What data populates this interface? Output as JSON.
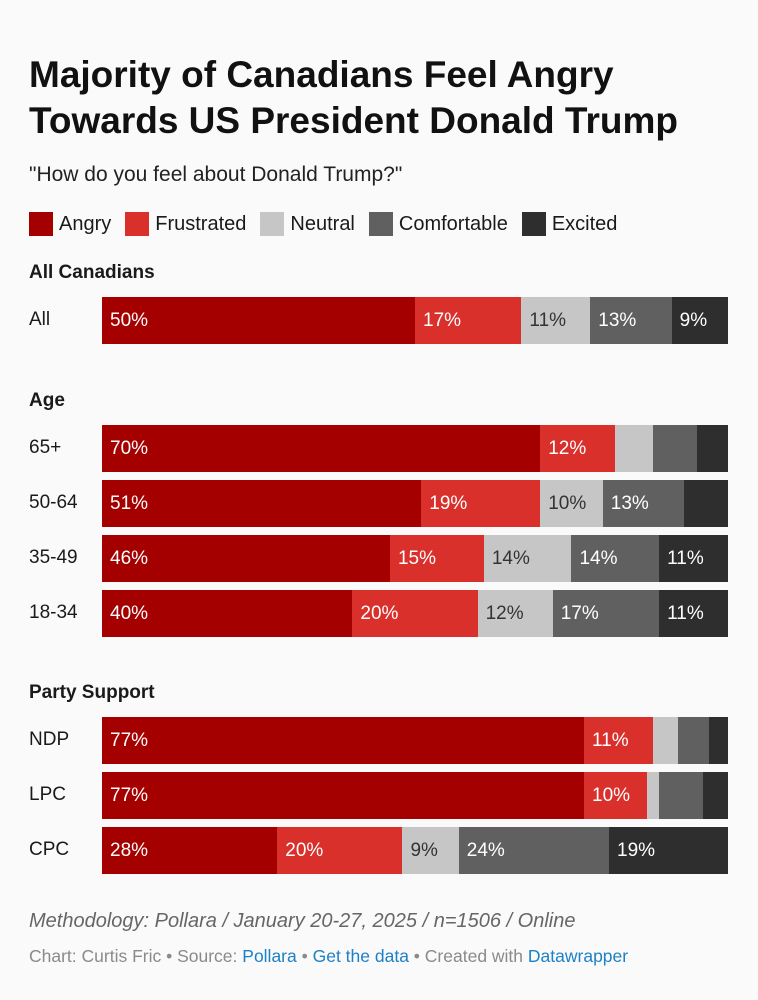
{
  "chart_data": {
    "type": "bar",
    "orientation": "horizontal-stacked-100",
    "title": "Majority of Canadians Feel Angry Towards US President Donald Trump",
    "subtitle": "\"How do you feel about Donald Trump?\"",
    "legend_placement": "top",
    "series": [
      {
        "name": "Angry",
        "color": "#a50000",
        "text_color": "#ffffff"
      },
      {
        "name": "Frustrated",
        "color": "#d9302c",
        "text_color": "#ffffff"
      },
      {
        "name": "Neutral",
        "color": "#c6c6c6",
        "text_color": "#333333"
      },
      {
        "name": "Comfortable",
        "color": "#606060",
        "text_color": "#ffffff"
      },
      {
        "name": "Excited",
        "color": "#2e2e2e",
        "text_color": "#ffffff"
      }
    ],
    "groups": [
      {
        "name": "All Canadians",
        "rows": [
          {
            "label": "All",
            "values": [
              50,
              17,
              11,
              13,
              9
            ],
            "labels": [
              "50%",
              "17%",
              "11%",
              "13%",
              "9%"
            ]
          }
        ]
      },
      {
        "name": "Age",
        "rows": [
          {
            "label": "65+",
            "values": [
              70,
              12,
              6,
              7,
              5
            ],
            "labels": [
              "70%",
              "12%",
              "",
              "",
              ""
            ]
          },
          {
            "label": "50-64",
            "values": [
              51,
              19,
              10,
              13,
              7
            ],
            "labels": [
              "51%",
              "19%",
              "10%",
              "13%",
              ""
            ]
          },
          {
            "label": "35-49",
            "values": [
              46,
              15,
              14,
              14,
              11
            ],
            "labels": [
              "46%",
              "15%",
              "14%",
              "14%",
              "11%"
            ]
          },
          {
            "label": "18-34",
            "values": [
              40,
              20,
              12,
              17,
              11
            ],
            "labels": [
              "40%",
              "20%",
              "12%",
              "17%",
              "11%"
            ]
          }
        ]
      },
      {
        "name": "Party Support",
        "rows": [
          {
            "label": "NDP",
            "values": [
              77,
              11,
              4,
              5,
              3
            ],
            "labels": [
              "77%",
              "11%",
              "",
              "",
              ""
            ]
          },
          {
            "label": "LPC",
            "values": [
              77,
              10,
              2,
              7,
              4
            ],
            "labels": [
              "77%",
              "10%",
              "",
              "",
              ""
            ]
          },
          {
            "label": "CPC",
            "values": [
              28,
              20,
              9,
              24,
              19
            ],
            "labels": [
              "28%",
              "20%",
              "9%",
              "24%",
              "19%"
            ]
          }
        ]
      }
    ]
  },
  "footer": {
    "methodology": "Methodology: Pollara / January 20-27, 2025 / n=1506 / Online",
    "chart_prefix": "Chart: Curtis Fric • Source: ",
    "source_link": "Pollara",
    "sep1": " • ",
    "data_link": "Get the data",
    "sep2": " • Created with ",
    "tool_link": "Datawrapper"
  }
}
